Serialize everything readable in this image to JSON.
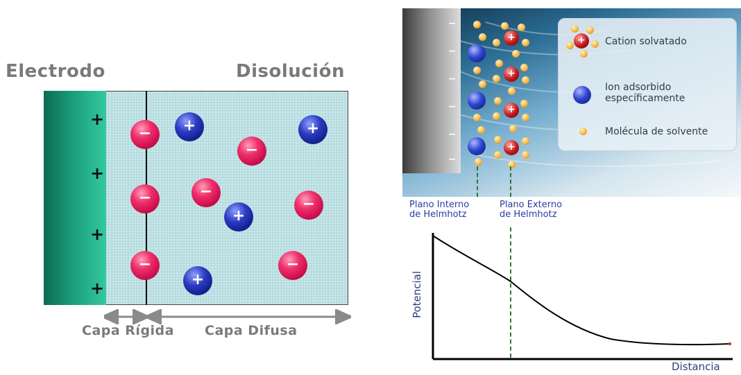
{
  "left_diagram": {
    "electrode_title": "Electrodo",
    "solution_title": "Disolución",
    "rigid_layer_label": "Capa Rígida",
    "diffuse_layer_label": "Capa Difusa",
    "electrode_charge_symbol": "+",
    "negative_ion_symbol": "−",
    "positive_ion_symbol": "+"
  },
  "right_diagram": {
    "electrode_charge_symbol": "−",
    "cation_symbol": "+",
    "legend": {
      "solvated_cation": "Cation solvatado",
      "adsorbed_ion_line1": "Ion adsorbido",
      "adsorbed_ion_line2": "específicamente",
      "solvent_molecule": "Molécula de solvente"
    },
    "inner_plane_line1": "Plano Interno",
    "inner_plane_line2": "de Helmhotz",
    "outer_plane_line1": "Plano Externo",
    "outer_plane_line2": "de Helmhotz",
    "y_axis_label": "Potencial",
    "x_axis_label": "Distancia"
  },
  "colors": {
    "electrode": "#1a9c7a",
    "solution": "#b6dde0",
    "negative_ion": "#f0306c",
    "positive_ion": "#1a2a9e",
    "guide_line": "#2d7a3a",
    "curve": "#000000"
  }
}
